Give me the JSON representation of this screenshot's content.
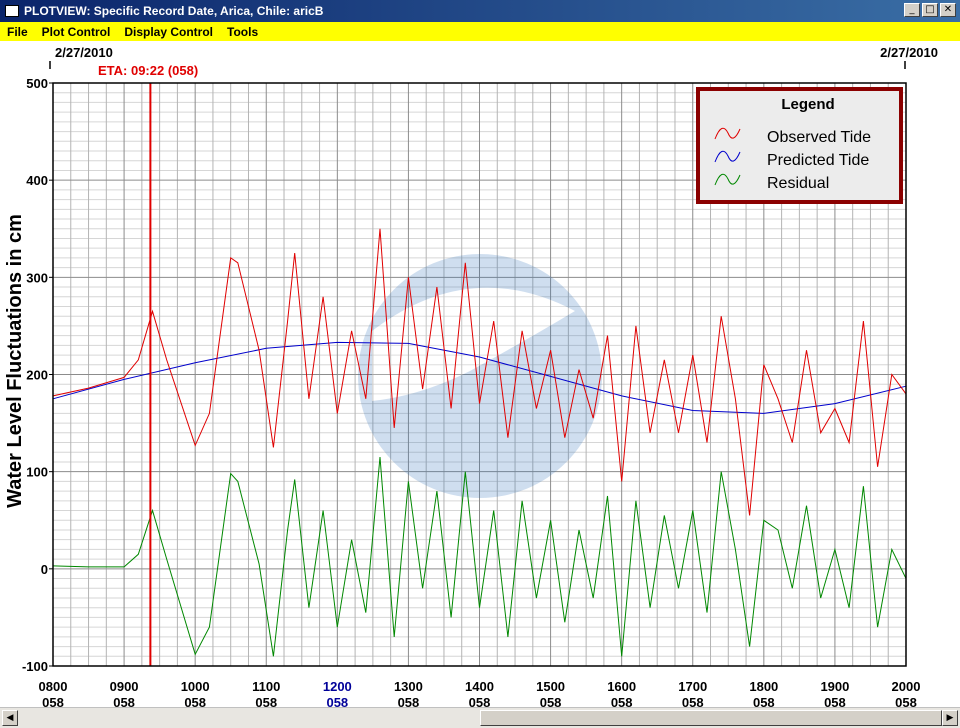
{
  "window": {
    "title": "PLOTVIEW: Specific Record Date, Arica, Chile: aricB",
    "minimize_glyph": "_",
    "maximize_glyph": "□",
    "close_glyph": "✕"
  },
  "menu": [
    "File",
    "Plot Control",
    "Display Control",
    "Tools"
  ],
  "plot": {
    "date_left": "2/27/2010",
    "date_right": "2/27/2010",
    "eta_label": "ETA: 09:22 (058)",
    "y_axis_label": "Water Level Fluctuations in cm",
    "legend_title": "Legend",
    "legend_items": [
      {
        "label": "Observed Tide",
        "color": "#e00000"
      },
      {
        "label": "Predicted Tide",
        "color": "#0000cc"
      },
      {
        "label": "Residual",
        "color": "#008800"
      }
    ]
  },
  "chart_data": {
    "type": "line",
    "ylabel": "Water Level Fluctuations in cm",
    "ylim": [
      -100,
      500
    ],
    "xlim": [
      0,
      12
    ],
    "yticks": [
      500,
      400,
      300,
      200,
      100,
      0,
      -100
    ],
    "xticks": [
      {
        "time": "0800",
        "day": "058"
      },
      {
        "time": "0900",
        "day": "058"
      },
      {
        "time": "1000",
        "day": "058"
      },
      {
        "time": "1100",
        "day": "058"
      },
      {
        "time": "1200",
        "day": "058",
        "highlight": true
      },
      {
        "time": "1300",
        "day": "058"
      },
      {
        "time": "1400",
        "day": "058"
      },
      {
        "time": "1500",
        "day": "058"
      },
      {
        "time": "1600",
        "day": "058"
      },
      {
        "time": "1700",
        "day": "058"
      },
      {
        "time": "1800",
        "day": "058"
      },
      {
        "time": "1900",
        "day": "058"
      },
      {
        "time": "2000",
        "day": "058"
      }
    ],
    "eta_hours": 1.37,
    "grid": true,
    "legend_position": "top-right",
    "series": [
      {
        "name": "Predicted Tide",
        "color": "#0000cc",
        "x": [
          0,
          1,
          2,
          3,
          4,
          5,
          6,
          7,
          8,
          9,
          10,
          11,
          12
        ],
        "values": [
          175,
          195,
          212,
          227,
          233,
          232,
          218,
          198,
          178,
          163,
          160,
          170,
          188
        ]
      },
      {
        "name": "Residual",
        "color": "#008800",
        "x": [
          0,
          0.5,
          1,
          1.2,
          1.4,
          1.6,
          2.0,
          2.2,
          2.5,
          2.6,
          2.9,
          3.1,
          3.3,
          3.4,
          3.6,
          3.8,
          4.0,
          4.2,
          4.4,
          4.6,
          4.8,
          5.0,
          5.2,
          5.4,
          5.6,
          5.8,
          6.0,
          6.2,
          6.4,
          6.6,
          6.8,
          7.0,
          7.2,
          7.4,
          7.6,
          7.8,
          8.0,
          8.2,
          8.4,
          8.6,
          8.8,
          9.0,
          9.2,
          9.4,
          9.6,
          9.8,
          10.0,
          10.2,
          10.4,
          10.6,
          10.8,
          11.0,
          11.2,
          11.4,
          11.6,
          11.8,
          12.0
        ],
        "values": [
          3,
          2,
          2,
          15,
          60,
          10,
          -88,
          -60,
          98,
          90,
          5,
          -90,
          40,
          92,
          -40,
          60,
          -60,
          30,
          -45,
          115,
          -70,
          90,
          -20,
          80,
          -50,
          100,
          -40,
          60,
          -70,
          70,
          -30,
          50,
          -55,
          40,
          -30,
          75,
          -90,
          70,
          -40,
          55,
          -20,
          60,
          -45,
          100,
          20,
          -80,
          50,
          40,
          -20,
          65,
          -30,
          20,
          -40,
          85,
          -60,
          20,
          -10
        ]
      },
      {
        "name": "Observed Tide",
        "color": "#e00000",
        "x": [
          0,
          0.5,
          1,
          1.2,
          1.4,
          1.6,
          2.0,
          2.2,
          2.5,
          2.6,
          2.9,
          3.1,
          3.3,
          3.4,
          3.6,
          3.8,
          4.0,
          4.2,
          4.4,
          4.6,
          4.8,
          5.0,
          5.2,
          5.4,
          5.6,
          5.8,
          6.0,
          6.2,
          6.4,
          6.6,
          6.8,
          7.0,
          7.2,
          7.4,
          7.6,
          7.8,
          8.0,
          8.2,
          8.4,
          8.6,
          8.8,
          9.0,
          9.2,
          9.4,
          9.6,
          9.8,
          10.0,
          10.2,
          10.4,
          10.6,
          10.8,
          11.0,
          11.2,
          11.4,
          11.6,
          11.8,
          12.0
        ],
        "values": [
          178,
          186,
          197,
          215,
          265,
          215,
          127,
          160,
          320,
          315,
          225,
          125,
          255,
          325,
          175,
          280,
          160,
          245,
          175,
          350,
          145,
          300,
          185,
          290,
          165,
          315,
          170,
          255,
          135,
          245,
          165,
          225,
          135,
          205,
          155,
          240,
          90,
          250,
          140,
          215,
          140,
          220,
          130,
          260,
          175,
          55,
          210,
          175,
          130,
          225,
          140,
          165,
          130,
          255,
          105,
          200,
          180
        ]
      }
    ]
  }
}
